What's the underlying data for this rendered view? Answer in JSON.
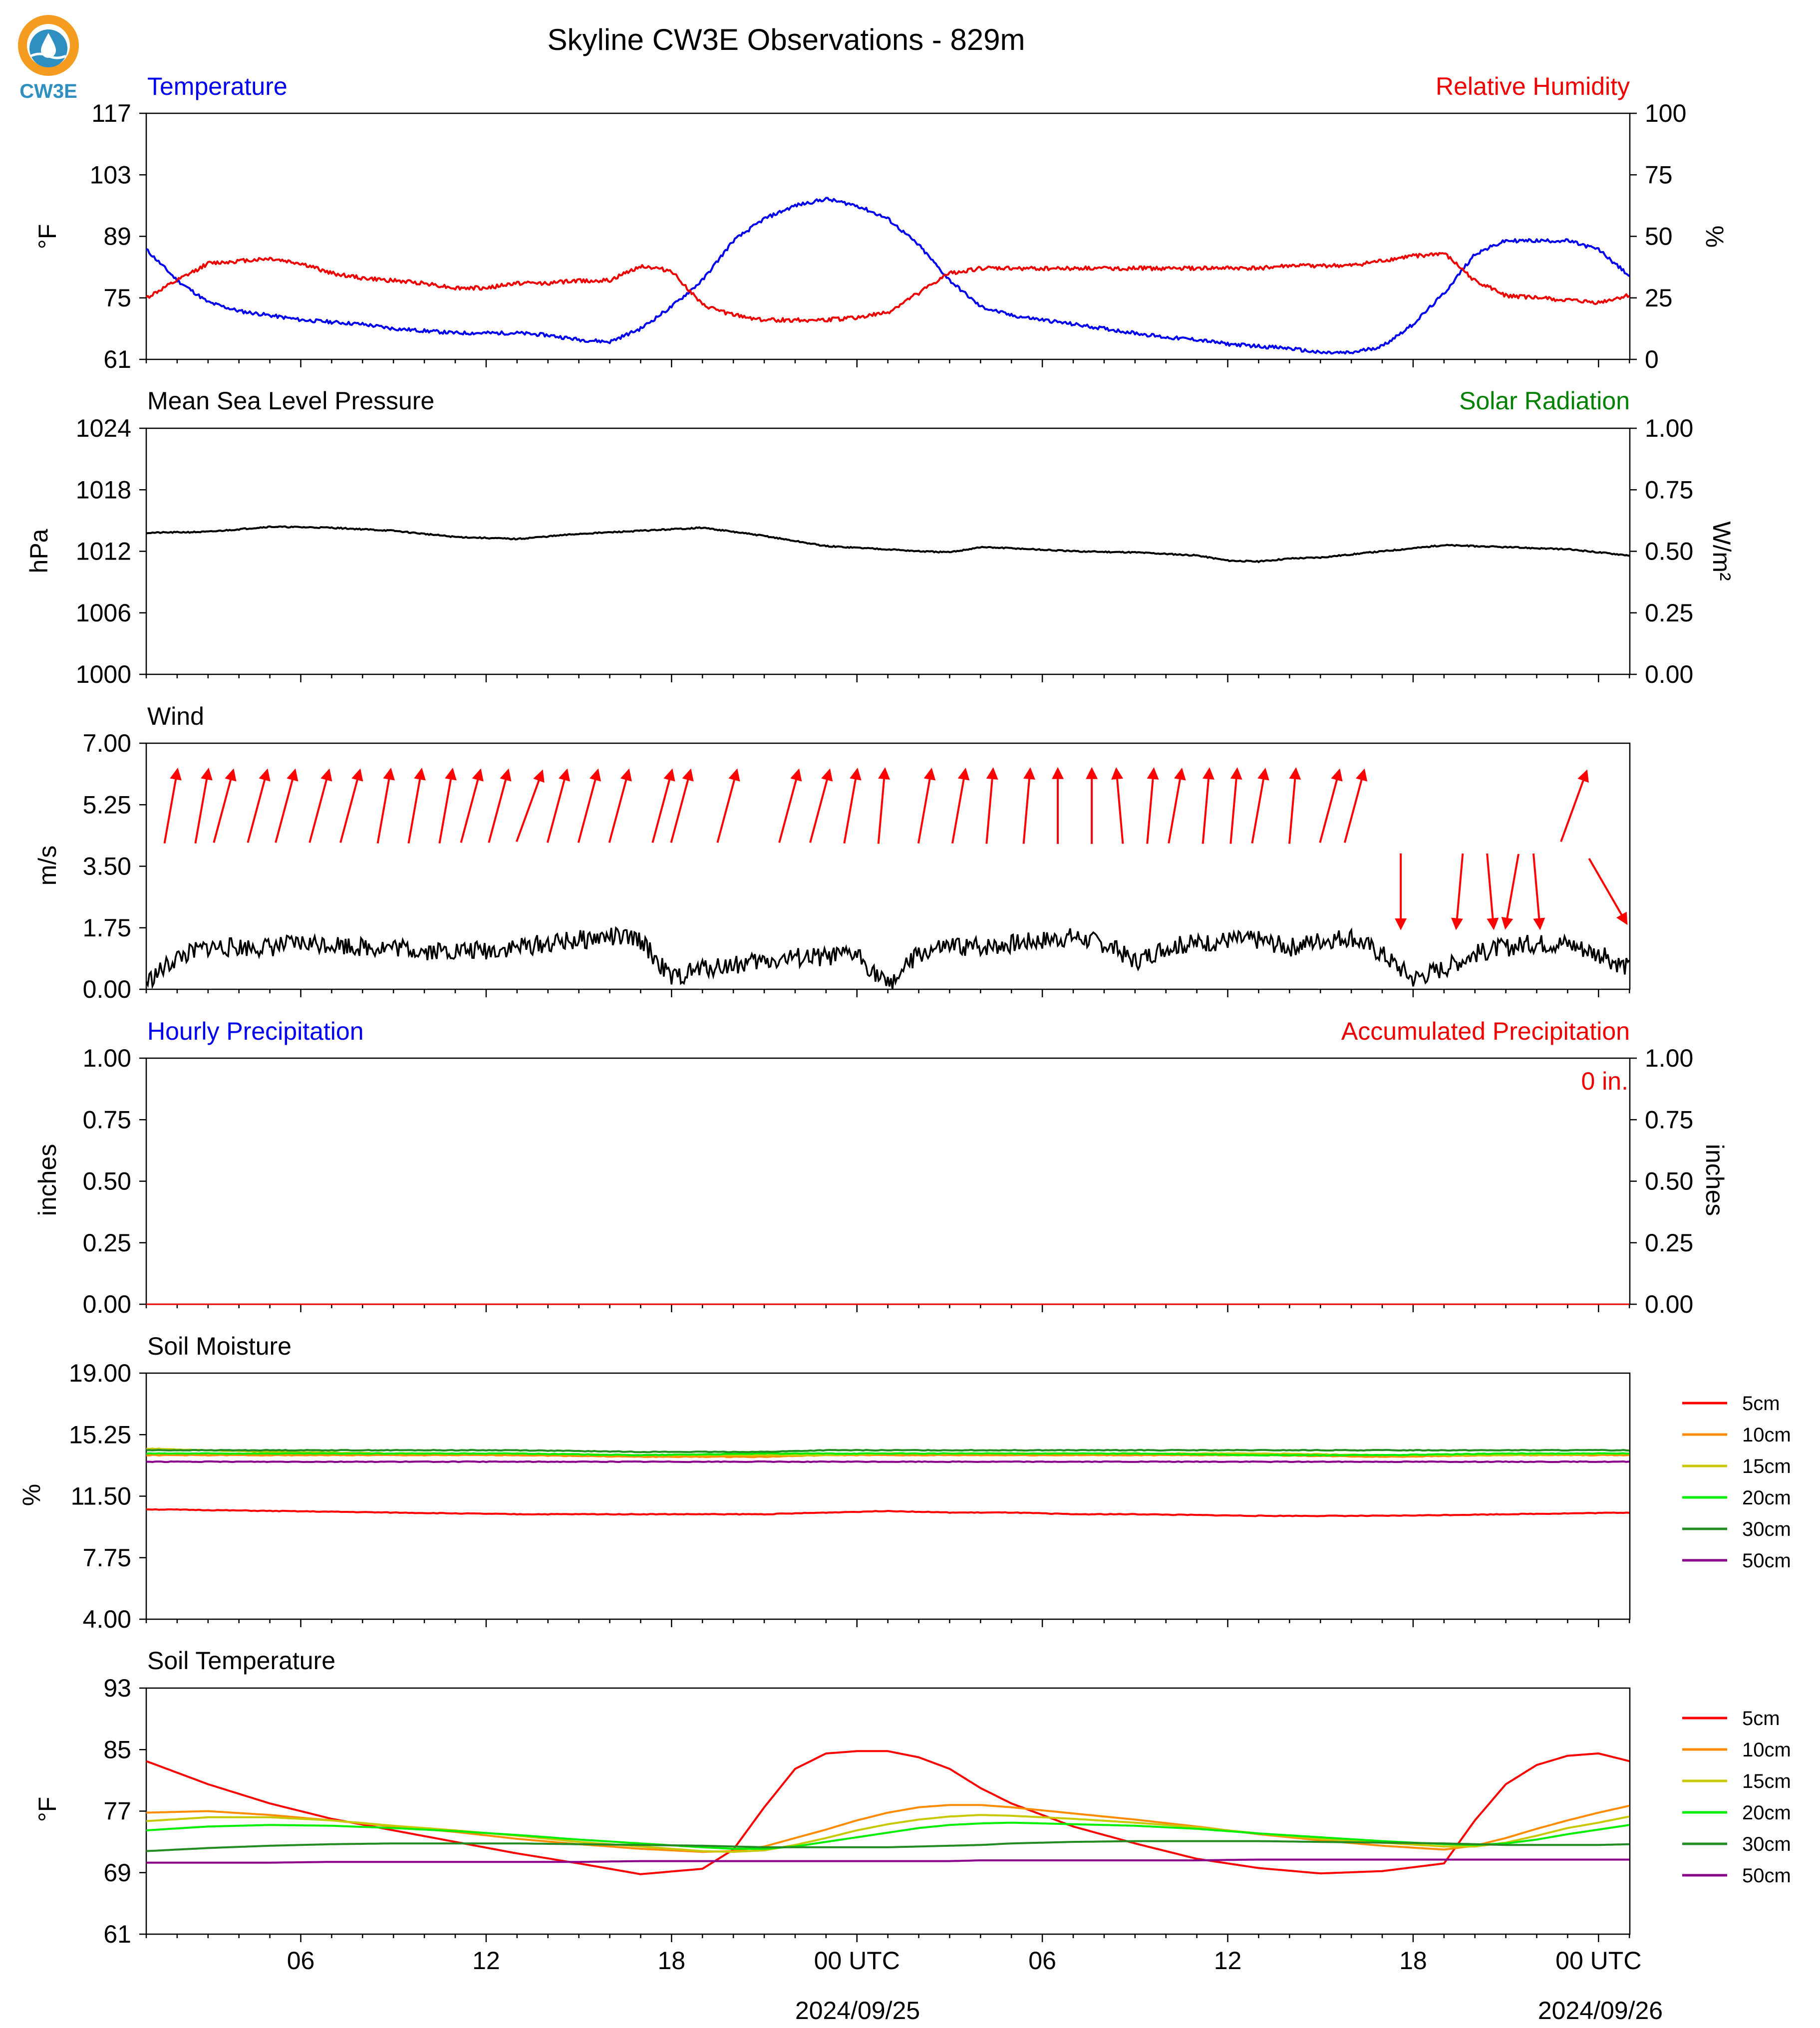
{
  "title": "Skyline CW3E Observations - 829m",
  "logo_text": "CW3E",
  "colors": {
    "temperature": "#0000ee",
    "humidity": "#ee0000",
    "solar": "#008000",
    "pressure": "#000000",
    "wind": "#000000",
    "wind_arrows": "#ff0000",
    "hourly_precip": "#0000ee",
    "accum_precip": "#ee0000",
    "logo_orange": "#f39c1f",
    "logo_blue": "#2f8fc0"
  },
  "x_axis": {
    "tick_labels": [
      "06",
      "12",
      "18",
      "00 UTC",
      "06",
      "12",
      "18",
      "00 UTC"
    ],
    "date_labels": [
      "2024/09/25",
      "2024/09/26"
    ]
  },
  "chart_data": [
    {
      "id": "temp_rh",
      "type": "line",
      "title_left": "Temperature",
      "title_right": "Relative Humidity",
      "ylabel_left": "°F",
      "ylabel_right": "%",
      "ylim_left": [
        61,
        117
      ],
      "ylim_right": [
        0,
        100
      ],
      "yticks_left": [
        "61",
        "75",
        "89",
        "103",
        "117"
      ],
      "yticks_right": [
        "0",
        "25",
        "50",
        "75",
        "100"
      ],
      "x_hours": [
        0,
        1,
        2,
        3,
        4,
        5,
        6,
        7,
        8,
        9,
        10,
        11,
        12,
        13,
        14,
        15,
        16,
        17,
        18,
        19,
        20,
        21,
        22,
        23,
        24,
        25,
        26,
        27,
        28,
        29,
        30,
        31,
        32,
        33,
        34,
        35,
        36,
        37,
        38,
        39,
        40,
        41,
        42,
        43,
        44,
        45,
        46,
        47,
        48
      ],
      "series": [
        {
          "name": "Temperature",
          "axis": "left",
          "color": "#0000ee",
          "values": [
            86,
            79,
            74,
            72,
            71,
            70,
            69.5,
            69,
            68,
            67.5,
            67,
            67,
            67,
            66.5,
            65.5,
            65,
            68,
            73,
            79,
            88,
            93,
            96,
            97.5,
            96,
            93,
            87,
            79,
            73,
            71,
            70,
            69,
            68,
            67,
            66,
            65.5,
            64.5,
            64,
            63.5,
            62.5,
            62.5,
            64,
            69,
            76,
            85,
            88,
            88,
            88,
            86,
            80
          ]
        },
        {
          "name": "Relative Humidity",
          "axis": "right",
          "color": "#ee0000",
          "values": [
            25,
            32,
            39,
            40,
            41,
            39,
            35,
            33,
            32,
            31,
            29,
            29,
            31,
            31,
            32,
            32,
            38,
            36,
            22,
            18,
            16,
            16,
            16,
            17,
            19,
            27,
            35,
            37,
            37,
            37,
            37,
            37,
            37,
            37,
            37,
            37,
            37,
            38,
            38,
            38,
            40,
            42,
            43,
            32,
            26,
            25,
            24,
            23,
            26
          ]
        }
      ]
    },
    {
      "id": "pressure_solar",
      "type": "line",
      "title_left": "Mean Sea Level Pressure",
      "title_right": "Solar Radiation",
      "ylabel_left": "hPa",
      "ylabel_right": "W/m²",
      "ylim_left": [
        1000,
        1024
      ],
      "ylim_right": [
        0,
        1
      ],
      "yticks_left": [
        "1000",
        "1006",
        "1012",
        "1018",
        "1024"
      ],
      "yticks_right": [
        "0.00",
        "0.25",
        "0.50",
        "0.75",
        "1.00"
      ],
      "x_hours": [
        0,
        2,
        4,
        6,
        8,
        10,
        12,
        14,
        16,
        18,
        20,
        22,
        24,
        25,
        26,
        27,
        28,
        30,
        32,
        34,
        35,
        36,
        37,
        38,
        40,
        42,
        44,
        46,
        48
      ],
      "series": [
        {
          "name": "Mean Sea Level Pressure",
          "axis": "left",
          "color": "#000000",
          "values": [
            1013.8,
            1013.9,
            1014.4,
            1014.3,
            1014.0,
            1013.4,
            1013.2,
            1013.7,
            1014.0,
            1014.3,
            1013.5,
            1012.5,
            1012.2,
            1012.0,
            1011.9,
            1012.4,
            1012.3,
            1012.0,
            1011.9,
            1011.6,
            1011.1,
            1011.0,
            1011.3,
            1011.4,
            1012.0,
            1012.6,
            1012.4,
            1012.2,
            1011.6
          ]
        }
      ]
    },
    {
      "id": "wind",
      "type": "line",
      "title_left": "Wind",
      "ylabel_left": "m/s",
      "ylim_left": [
        0,
        7
      ],
      "yticks_left": [
        "0.00",
        "1.75",
        "3.50",
        "5.25",
        "7.00"
      ],
      "x_hours": [
        0,
        1,
        2,
        3,
        4,
        5,
        6,
        7,
        8,
        9,
        10,
        11,
        12,
        13,
        14,
        15,
        16,
        17,
        18,
        19,
        20,
        21,
        22,
        23,
        24,
        25,
        26,
        27,
        28,
        29,
        30,
        31,
        32,
        33,
        34,
        35,
        36,
        37,
        38,
        39,
        40,
        41,
        42,
        43,
        44,
        45,
        46,
        47,
        48
      ],
      "series": [
        {
          "name": "Wind",
          "axis": "left",
          "color": "#000000",
          "values": [
            0.2,
            0.9,
            1.2,
            1.2,
            1.2,
            1.3,
            1.3,
            1.2,
            1.2,
            1.1,
            1.1,
            1.1,
            1.2,
            1.3,
            1.4,
            1.5,
            1.4,
            0.3,
            0.6,
            0.7,
            0.8,
            0.9,
            0.9,
            1.0,
            0.1,
            1.0,
            1.2,
            1.2,
            1.3,
            1.4,
            1.5,
            1.3,
            0.8,
            1.2,
            1.3,
            1.4,
            1.4,
            1.2,
            1.4,
            1.5,
            1.0,
            0.3,
            0.6,
            1.0,
            1.2,
            1.3,
            1.3,
            1.0,
            0.6
          ]
        }
      ],
      "arrows": {
        "hours": [
          0.8,
          1.8,
          2.5,
          3.6,
          4.5,
          5.6,
          6.6,
          7.7,
          8.7,
          9.7,
          10.5,
          11.4,
          12.4,
          13.3,
          14.3,
          15.3,
          16.7,
          17.3,
          18.8,
          20.8,
          21.8,
          22.8,
          23.8,
          25.2,
          26.3,
          27.3,
          28.5,
          29.5,
          30.6,
          31.5,
          32.5,
          33.3,
          34.3,
          35.2,
          36.0,
          37.1,
          38.3,
          39.1,
          40.6,
          42.5,
          43.5,
          44.2,
          45.0,
          46.2,
          47.3
        ],
        "speeds": [
          2.5,
          2.5,
          2.5,
          2.5,
          2.5,
          2.5,
          2.5,
          2.5,
          2.5,
          2.5,
          2.5,
          2.5,
          2.5,
          2.5,
          2.5,
          2.5,
          2.5,
          2.5,
          2.5,
          2.5,
          2.5,
          2.5,
          2.5,
          2.5,
          2.5,
          2.5,
          2.5,
          2.5,
          2.5,
          2.5,
          2.5,
          2.5,
          2.5,
          2.5,
          2.5,
          2.5,
          2.5,
          2.5,
          2.5,
          2.5,
          2.5,
          2.5,
          2.5,
          2.5,
          2.5
        ],
        "directions_deg": [
          10,
          10,
          15,
          15,
          15,
          15,
          15,
          10,
          10,
          10,
          15,
          15,
          20,
          15,
          15,
          15,
          15,
          15,
          15,
          15,
          15,
          10,
          5,
          10,
          10,
          5,
          5,
          0,
          0,
          355,
          5,
          10,
          5,
          5,
          10,
          5,
          15,
          15,
          180,
          185,
          175,
          190,
          175,
          20,
          150
        ]
      }
    },
    {
      "id": "precip",
      "type": "line",
      "title_left": "Hourly Precipitation",
      "title_right": "Accumulated Precipitation",
      "annotation": "0 in.",
      "ylabel_left": "inches",
      "ylabel_right": "inches",
      "ylim_left": [
        0,
        1
      ],
      "ylim_right": [
        0,
        1
      ],
      "yticks_left": [
        "0.00",
        "0.25",
        "0.50",
        "0.75",
        "1.00"
      ],
      "yticks_right": [
        "0.00",
        "0.25",
        "0.50",
        "0.75",
        "1.00"
      ],
      "x_hours": [
        0,
        48
      ],
      "series": [
        {
          "name": "Hourly Precipitation",
          "axis": "left",
          "color": "#0000ee",
          "values": [
            0,
            0
          ]
        },
        {
          "name": "Accumulated Precipitation",
          "axis": "right",
          "color": "#ee0000",
          "values": [
            0,
            0
          ]
        }
      ]
    },
    {
      "id": "soil_moisture",
      "type": "line",
      "title_left": "Soil Moisture",
      "ylabel_left": "%",
      "ylim_left": [
        4,
        19
      ],
      "yticks_left": [
        "4.00",
        "7.75",
        "11.50",
        "15.25",
        "19.00"
      ],
      "x_hours": [
        0,
        4,
        8,
        12,
        16,
        20,
        22,
        24,
        26,
        28,
        30,
        32,
        36,
        40,
        44,
        48
      ],
      "series": [
        {
          "name": "5cm",
          "color": "#ff0000",
          "values": [
            10.7,
            10.6,
            10.5,
            10.4,
            10.4,
            10.4,
            10.5,
            10.6,
            10.5,
            10.5,
            10.4,
            10.4,
            10.3,
            10.3,
            10.4,
            10.5
          ]
        },
        {
          "name": "10cm",
          "color": "#ff8c00",
          "values": [
            14.0,
            14.0,
            14.0,
            14.0,
            13.9,
            13.9,
            14.0,
            14.0,
            14.0,
            14.0,
            14.0,
            14.0,
            14.0,
            13.9,
            14.0,
            14.0
          ]
        },
        {
          "name": "15cm",
          "color": "#c8c800",
          "values": [
            14.4,
            14.2,
            14.1,
            14.1,
            14.0,
            14.0,
            14.0,
            14.1,
            14.1,
            14.1,
            14.1,
            14.1,
            14.1,
            14.0,
            14.0,
            14.1
          ]
        },
        {
          "name": "20cm",
          "color": "#00ee00",
          "values": [
            14.1,
            14.1,
            14.1,
            14.1,
            14.0,
            14.1,
            14.1,
            14.1,
            14.1,
            14.1,
            14.1,
            14.1,
            14.0,
            14.0,
            14.1,
            14.1
          ]
        },
        {
          "name": "30cm",
          "color": "#228b22",
          "values": [
            14.3,
            14.3,
            14.3,
            14.3,
            14.2,
            14.2,
            14.3,
            14.3,
            14.3,
            14.3,
            14.3,
            14.3,
            14.3,
            14.3,
            14.3,
            14.3
          ]
        },
        {
          "name": "50cm",
          "color": "#8b008b",
          "values": [
            13.6,
            13.6,
            13.6,
            13.6,
            13.6,
            13.6,
            13.6,
            13.6,
            13.6,
            13.6,
            13.6,
            13.6,
            13.6,
            13.6,
            13.6,
            13.6
          ]
        }
      ],
      "legend": [
        "5cm",
        "10cm",
        "15cm",
        "20cm",
        "30cm",
        "50cm"
      ]
    },
    {
      "id": "soil_temp",
      "type": "line",
      "title_left": "Soil Temperature",
      "ylabel_left": "°F",
      "ylim_left": [
        61,
        93
      ],
      "yticks_left": [
        "61",
        "69",
        "77",
        "85",
        "93"
      ],
      "x_hours": [
        0,
        2,
        4,
        6,
        8,
        10,
        12,
        14,
        16,
        18,
        19,
        20,
        21,
        22,
        23,
        24,
        25,
        26,
        27,
        28,
        30,
        32,
        34,
        36,
        38,
        40,
        42,
        43,
        44,
        45,
        46,
        47,
        48
      ],
      "series": [
        {
          "name": "5cm",
          "color": "#ff0000",
          "values": [
            83.5,
            80.5,
            78,
            76,
            74.5,
            73,
            71.5,
            70.2,
            68.8,
            69.5,
            72,
            77.5,
            82.5,
            84.5,
            84.8,
            84.8,
            84,
            82.5,
            80,
            78,
            75,
            72.8,
            70.8,
            69.6,
            68.9,
            69.2,
            70.2,
            75.8,
            80.5,
            83,
            84.2,
            84.5,
            83.5
          ]
        },
        {
          "name": "10cm",
          "color": "#ff8c00",
          "values": [
            76.8,
            77,
            76.5,
            75.8,
            75,
            74.3,
            73.4,
            72.7,
            72.1,
            71.7,
            71.8,
            72.4,
            73.5,
            74.6,
            75.8,
            76.8,
            77.5,
            77.8,
            77.8,
            77.5,
            76.7,
            75.9,
            75,
            74,
            73.2,
            72.5,
            72,
            72.5,
            73.5,
            74.7,
            75.8,
            76.8,
            77.7
          ]
        },
        {
          "name": "15cm",
          "color": "#c8c800",
          "values": [
            75.7,
            76.2,
            76.2,
            75.8,
            75.1,
            74.5,
            73.8,
            73,
            72.4,
            71.8,
            71.7,
            71.9,
            72.6,
            73.5,
            74.5,
            75.3,
            75.9,
            76.3,
            76.5,
            76.4,
            76,
            75.5,
            74.9,
            74.1,
            73.4,
            72.9,
            72.4,
            72.4,
            72.9,
            73.8,
            74.8,
            75.5,
            76.3
          ]
        },
        {
          "name": "20cm",
          "color": "#00ee00",
          "values": [
            74.5,
            75,
            75.2,
            75.1,
            74.8,
            74.4,
            73.9,
            73.3,
            72.8,
            72.3,
            72.1,
            72.1,
            72.4,
            73,
            73.6,
            74.2,
            74.8,
            75.2,
            75.4,
            75.5,
            75.3,
            75.1,
            74.7,
            74.1,
            73.6,
            73.1,
            72.7,
            72.6,
            72.8,
            73.3,
            74,
            74.6,
            75.2
          ]
        },
        {
          "name": "30cm",
          "color": "#228b22",
          "values": [
            71.8,
            72.2,
            72.5,
            72.7,
            72.8,
            72.8,
            72.8,
            72.7,
            72.6,
            72.5,
            72.4,
            72.3,
            72.3,
            72.3,
            72.3,
            72.3,
            72.4,
            72.5,
            72.6,
            72.8,
            73,
            73.1,
            73.1,
            73.1,
            73,
            72.9,
            72.8,
            72.7,
            72.6,
            72.6,
            72.6,
            72.6,
            72.7
          ]
        },
        {
          "name": "50cm",
          "color": "#8b008b",
          "values": [
            70.3,
            70.3,
            70.3,
            70.4,
            70.4,
            70.4,
            70.4,
            70.4,
            70.5,
            70.5,
            70.5,
            70.5,
            70.5,
            70.5,
            70.5,
            70.5,
            70.5,
            70.5,
            70.6,
            70.6,
            70.6,
            70.6,
            70.6,
            70.7,
            70.7,
            70.7,
            70.7,
            70.7,
            70.7,
            70.7,
            70.7,
            70.7,
            70.7
          ]
        }
      ],
      "legend": [
        "5cm",
        "10cm",
        "15cm",
        "20cm",
        "30cm",
        "50cm"
      ]
    }
  ]
}
